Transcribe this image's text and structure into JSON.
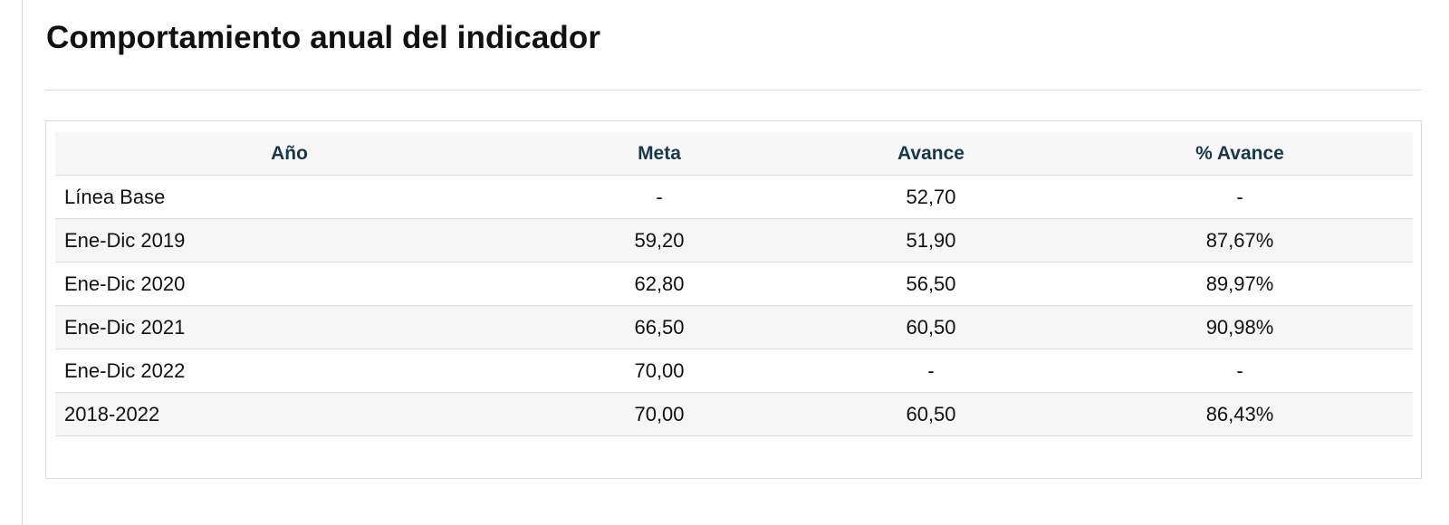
{
  "title": "Comportamiento anual del indicador",
  "table": {
    "headers": [
      "Año",
      "Meta",
      "Avance",
      "% Avance"
    ],
    "rows": [
      [
        "Línea Base",
        "-",
        "52,70",
        "-"
      ],
      [
        "Ene-Dic 2019",
        "59,20",
        "51,90",
        "87,67%"
      ],
      [
        "Ene-Dic 2020",
        "62,80",
        "56,50",
        "89,97%"
      ],
      [
        "Ene-Dic 2021",
        "66,50",
        "60,50",
        "90,98%"
      ],
      [
        "Ene-Dic 2022",
        "70,00",
        "-",
        "-"
      ],
      [
        "2018-2022",
        "70,00",
        "60,50",
        "86,43%"
      ]
    ]
  },
  "colors": {
    "header_text": "#16384f",
    "header_bg": "#f7f7f7",
    "alt_row_bg": "#f6f6f6",
    "border": "#dddddd"
  }
}
